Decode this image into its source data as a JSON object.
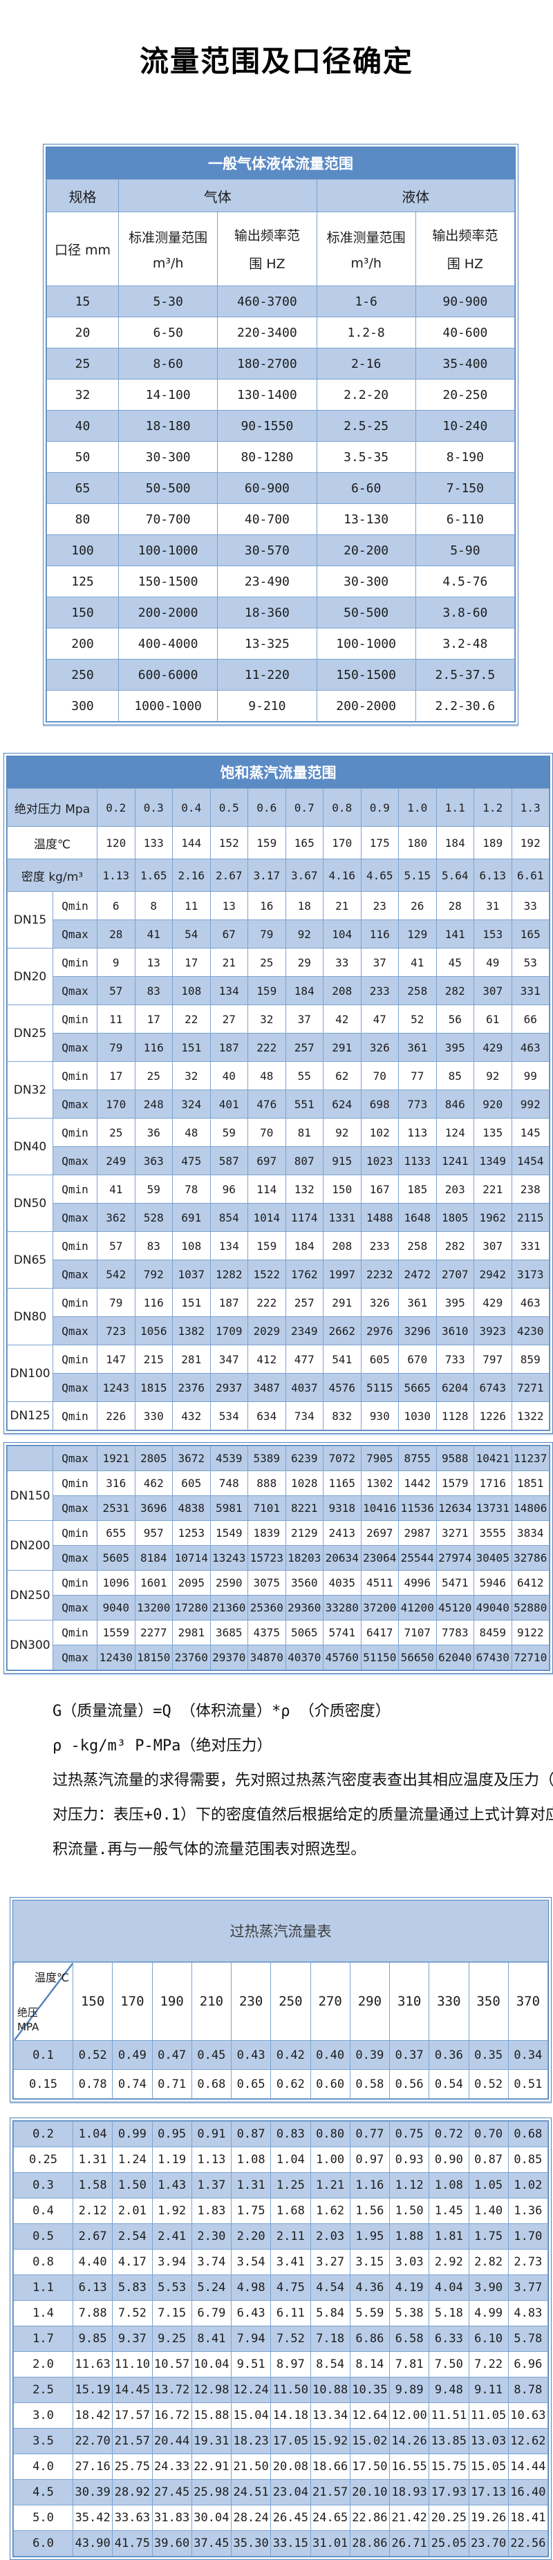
{
  "page": {
    "title": "流量范围及口径确定"
  },
  "colors": {
    "header_bar_blue": "#5b8bc5",
    "light_row_blue": "#b9cde8",
    "grid_line_blue": "#7ba3cf",
    "frame_blue": "#4f81bd"
  },
  "labels": {
    "qmin": "Qmin",
    "qmax": "Qmax"
  },
  "table1": {
    "title": "一般气体液体流量范围",
    "col_spec": "规格",
    "col_gas": "气体",
    "col_liquid": "液体",
    "col_diameter": "口径 mm",
    "sub_range": "标准测量范围",
    "sub_range_unit": "m³/h",
    "sub_freq_l1": "输出频率范",
    "sub_freq_l2": "围 HZ",
    "rows": [
      [
        "15",
        "5-30",
        "460-3700",
        "1-6",
        "90-900"
      ],
      [
        "20",
        "6-50",
        "220-3400",
        "1.2-8",
        "40-600"
      ],
      [
        "25",
        "8-60",
        "180-2700",
        "2-16",
        "35-400"
      ],
      [
        "32",
        "14-100",
        "130-1400",
        "2.2-20",
        "20-250"
      ],
      [
        "40",
        "18-180",
        "90-1550",
        "2.5-25",
        "10-240"
      ],
      [
        "50",
        "30-300",
        "80-1280",
        "3.5-35",
        "8-190"
      ],
      [
        "65",
        "50-500",
        "60-900",
        "6-60",
        "7-150"
      ],
      [
        "80",
        "70-700",
        "40-700",
        "13-130",
        "6-110"
      ],
      [
        "100",
        "100-1000",
        "30-570",
        "20-200",
        "5-90"
      ],
      [
        "125",
        "150-1500",
        "23-490",
        "30-300",
        "4.5-76"
      ],
      [
        "150",
        "200-2000",
        "18-360",
        "50-500",
        "3.8-60"
      ],
      [
        "200",
        "400-4000",
        "13-325",
        "100-1000",
        "3.2-48"
      ],
      [
        "250",
        "600-6000",
        "11-220",
        "150-1500",
        "2.5-37.5"
      ],
      [
        "300",
        "1000-1000",
        "9-210",
        "200-2000",
        "2.2-30.6"
      ]
    ]
  },
  "table2": {
    "title": "饱和蒸汽流量范围",
    "pressure_label": "绝对压力 Mpa",
    "pressures": [
      "0.2",
      "0.3",
      "0.4",
      "0.5",
      "0.6",
      "0.7",
      "0.8",
      "0.9",
      "1.0",
      "1.1",
      "1.2",
      "1.3"
    ],
    "temp_label": "温度℃",
    "temps": [
      120,
      133,
      144,
      152,
      159,
      165,
      170,
      175,
      180,
      184,
      189,
      192
    ],
    "density_label": "密度 kg/m³",
    "densities": [
      "1.13",
      "1.65",
      "2.16",
      "2.67",
      "3.17",
      "3.67",
      "4.16",
      "4.65",
      "5.15",
      "5.64",
      "6.13",
      "6.61"
    ],
    "dn_rows": [
      {
        "dn": "DN15",
        "qmin": [
          6,
          8,
          11,
          13,
          16,
          18,
          21,
          23,
          26,
          28,
          31,
          33
        ],
        "qmax": [
          28,
          41,
          54,
          67,
          79,
          92,
          104,
          116,
          129,
          141,
          153,
          165
        ]
      },
      {
        "dn": "DN20",
        "qmin": [
          9,
          13,
          17,
          21,
          25,
          29,
          33,
          37,
          41,
          45,
          49,
          53
        ],
        "qmax": [
          57,
          83,
          108,
          134,
          159,
          184,
          208,
          233,
          258,
          282,
          307,
          331
        ]
      },
      {
        "dn": "DN25",
        "qmin": [
          11,
          17,
          22,
          27,
          32,
          37,
          42,
          47,
          52,
          56,
          61,
          66
        ],
        "qmax": [
          79,
          116,
          151,
          187,
          222,
          257,
          291,
          326,
          361,
          395,
          429,
          463
        ]
      },
      {
        "dn": "DN32",
        "qmin": [
          17,
          25,
          32,
          40,
          48,
          55,
          62,
          70,
          77,
          85,
          92,
          99
        ],
        "qmax": [
          170,
          248,
          324,
          401,
          476,
          551,
          624,
          698,
          773,
          846,
          920,
          992
        ]
      },
      {
        "dn": "DN40",
        "qmin": [
          25,
          36,
          48,
          59,
          70,
          81,
          92,
          102,
          113,
          124,
          135,
          145
        ],
        "qmax": [
          249,
          363,
          475,
          587,
          697,
          807,
          915,
          1023,
          1133,
          1241,
          1349,
          1454
        ]
      },
      {
        "dn": "DN50",
        "qmin": [
          41,
          59,
          78,
          96,
          114,
          132,
          150,
          167,
          185,
          203,
          221,
          238
        ],
        "qmax": [
          362,
          528,
          691,
          854,
          1014,
          1174,
          1331,
          1488,
          1648,
          1805,
          1962,
          2115
        ]
      },
      {
        "dn": "DN65",
        "qmin": [
          57,
          83,
          108,
          134,
          159,
          184,
          208,
          233,
          258,
          282,
          307,
          331
        ],
        "qmax": [
          542,
          792,
          1037,
          1282,
          1522,
          1762,
          1997,
          2232,
          2472,
          2707,
          2942,
          3173
        ]
      },
      {
        "dn": "DN80",
        "qmin": [
          79,
          116,
          151,
          187,
          222,
          257,
          291,
          326,
          361,
          395,
          429,
          463
        ],
        "qmax": [
          723,
          1056,
          1382,
          1709,
          2029,
          2349,
          2662,
          2976,
          3296,
          3610,
          3923,
          4230
        ]
      },
      {
        "dn": "DN100",
        "qmin": [
          147,
          215,
          281,
          347,
          412,
          477,
          541,
          605,
          670,
          733,
          797,
          859
        ],
        "qmax": [
          1243,
          1815,
          2376,
          2937,
          3487,
          4037,
          4576,
          5115,
          5665,
          6204,
          6743,
          7271
        ]
      },
      {
        "dn": "DN125",
        "qmin": [
          226,
          330,
          432,
          534,
          634,
          734,
          832,
          930,
          1030,
          1128,
          1226,
          1322
        ],
        "qmax": null
      }
    ]
  },
  "table3": {
    "orphan_qmax": [
      1921,
      2805,
      3672,
      4539,
      5389,
      6239,
      7072,
      7905,
      8755,
      9588,
      10421,
      11237
    ],
    "dn_rows": [
      {
        "dn": "DN150",
        "qmin": [
          316,
          462,
          605,
          748,
          888,
          1028,
          1165,
          1302,
          1442,
          1579,
          1716,
          1851
        ],
        "qmax": [
          2531,
          3696,
          4838,
          5981,
          7101,
          8221,
          9318,
          10416,
          11536,
          12634,
          13731,
          14806
        ]
      },
      {
        "dn": "DN200",
        "qmin": [
          655,
          957,
          1253,
          1549,
          1839,
          2129,
          2413,
          2697,
          2987,
          3271,
          3555,
          3834
        ],
        "qmax": [
          5605,
          8184,
          10714,
          13243,
          15723,
          18203,
          20634,
          23064,
          25544,
          27974,
          30405,
          32786
        ]
      },
      {
        "dn": "DN250",
        "qmin": [
          1096,
          1601,
          2095,
          2590,
          3075,
          3560,
          4035,
          4511,
          4996,
          5471,
          5946,
          6412
        ],
        "qmax": [
          9040,
          13200,
          17280,
          21360,
          25360,
          29360,
          33280,
          37200,
          41200,
          45120,
          49040,
          52880
        ]
      },
      {
        "dn": "DN300",
        "qmin": [
          1559,
          2277,
          2981,
          3685,
          4375,
          5065,
          5741,
          6417,
          7107,
          7783,
          8459,
          9122
        ],
        "qmax": [
          12430,
          18150,
          23760,
          29370,
          34870,
          40370,
          45760,
          51150,
          56650,
          62040,
          67430,
          72710
        ]
      }
    ]
  },
  "notes": {
    "lines": [
      "G（质量流量）=Q （体积流量）*ρ （介质密度）",
      "ρ -kg/m³ P-MPa（绝对压力）",
      "过热蒸汽流量的求得需要，先对照过热蒸汽密度表查出其相应温度及压力（取绝",
      "对压力：表压+0.1）下的密度值然后根据给定的质量流量通过上式计算对应的体",
      "积流量.再与一般气体的流量范围表对照选型。"
    ]
  },
  "table4": {
    "title": "过热蒸汽流量表",
    "corner_top": "温度℃",
    "corner_bottom": "绝压 MPA",
    "temps": [
      150,
      170,
      190,
      210,
      230,
      250,
      270,
      290,
      310,
      330,
      350,
      370
    ],
    "block1_rows": [
      {
        "p": "0.1",
        "v": [
          "0.52",
          "0.49",
          "0.47",
          "0.45",
          "0.43",
          "0.42",
          "0.40",
          "0.39",
          "0.37",
          "0.36",
          "0.35",
          "0.34"
        ]
      },
      {
        "p": "0.15",
        "v": [
          "0.78",
          "0.74",
          "0.71",
          "0.68",
          "0.65",
          "0.62",
          "0.60",
          "0.58",
          "0.56",
          "0.54",
          "0.52",
          "0.51"
        ]
      }
    ],
    "block2_rows": [
      {
        "p": "0.2",
        "v": [
          "1.04",
          "0.99",
          "0.95",
          "0.91",
          "0.87",
          "0.83",
          "0.80",
          "0.77",
          "0.75",
          "0.72",
          "0.70",
          "0.68"
        ]
      },
      {
        "p": "0.25",
        "v": [
          "1.31",
          "1.24",
          "1.19",
          "1.13",
          "1.08",
          "1.04",
          "1.00",
          "0.97",
          "0.93",
          "0.90",
          "0.87",
          "0.85"
        ]
      },
      {
        "p": "0.3",
        "v": [
          "1.58",
          "1.50",
          "1.43",
          "1.37",
          "1.31",
          "1.25",
          "1.21",
          "1.16",
          "1.12",
          "1.08",
          "1.05",
          "1.02"
        ]
      },
      {
        "p": "0.4",
        "v": [
          "2.12",
          "2.01",
          "1.92",
          "1.83",
          "1.75",
          "1.68",
          "1.62",
          "1.56",
          "1.50",
          "1.45",
          "1.40",
          "1.36"
        ]
      },
      {
        "p": "0.5",
        "v": [
          "2.67",
          "2.54",
          "2.41",
          "2.30",
          "2.20",
          "2.11",
          "2.03",
          "1.95",
          "1.88",
          "1.81",
          "1.75",
          "1.70"
        ]
      },
      {
        "p": "0.8",
        "v": [
          "4.40",
          "4.17",
          "3.94",
          "3.74",
          "3.54",
          "3.41",
          "3.27",
          "3.15",
          "3.03",
          "2.92",
          "2.82",
          "2.73"
        ]
      },
      {
        "p": "1.1",
        "v": [
          "6.13",
          "5.83",
          "5.53",
          "5.24",
          "4.98",
          "4.75",
          "4.54",
          "4.36",
          "4.19",
          "4.04",
          "3.90",
          "3.77"
        ]
      },
      {
        "p": "1.4",
        "v": [
          "7.88",
          "7.52",
          "7.15",
          "6.79",
          "6.43",
          "6.11",
          "5.84",
          "5.59",
          "5.38",
          "5.18",
          "4.99",
          "4.83"
        ]
      },
      {
        "p": "1.7",
        "v": [
          "9.85",
          "9.37",
          "9.25",
          "8.41",
          "7.94",
          "7.52",
          "7.18",
          "6.86",
          "6.58",
          "6.33",
          "6.10",
          "5.78"
        ]
      },
      {
        "p": "2.0",
        "v": [
          "11.63",
          "11.10",
          "10.57",
          "10.04",
          "9.51",
          "8.97",
          "8.54",
          "8.14",
          "7.81",
          "7.50",
          "7.22",
          "6.96"
        ]
      },
      {
        "p": "2.5",
        "v": [
          "15.19",
          "14.45",
          "13.72",
          "12.98",
          "12.24",
          "11.50",
          "10.88",
          "10.35",
          "9.89",
          "9.48",
          "9.11",
          "8.78"
        ]
      },
      {
        "p": "3.0",
        "v": [
          "18.42",
          "17.57",
          "16.72",
          "15.88",
          "15.04",
          "14.18",
          "13.34",
          "12.64",
          "12.00",
          "11.51",
          "11.05",
          "10.63"
        ]
      },
      {
        "p": "3.5",
        "v": [
          "22.70",
          "21.57",
          "20.44",
          "19.31",
          "18.23",
          "17.05",
          "15.92",
          "15.02",
          "14.26",
          "13.85",
          "13.03",
          "12.62"
        ]
      },
      {
        "p": "4.0",
        "v": [
          "27.16",
          "25.75",
          "24.33",
          "22.91",
          "21.50",
          "20.08",
          "18.66",
          "17.50",
          "16.55",
          "15.75",
          "15.05",
          "14.44"
        ]
      },
      {
        "p": "4.5",
        "v": [
          "30.39",
          "28.92",
          "27.45",
          "25.98",
          "24.51",
          "23.04",
          "21.57",
          "20.10",
          "18.93",
          "17.93",
          "17.13",
          "16.40"
        ]
      },
      {
        "p": "5.0",
        "v": [
          "35.42",
          "33.63",
          "31.83",
          "30.04",
          "28.24",
          "26.45",
          "24.65",
          "22.86",
          "21.42",
          "20.25",
          "19.26",
          "18.41"
        ]
      },
      {
        "p": "6.0",
        "v": [
          "43.90",
          "41.75",
          "39.60",
          "37.45",
          "35.30",
          "33.15",
          "31.01",
          "28.86",
          "26.71",
          "25.05",
          "23.70",
          "22.56"
        ]
      }
    ]
  }
}
